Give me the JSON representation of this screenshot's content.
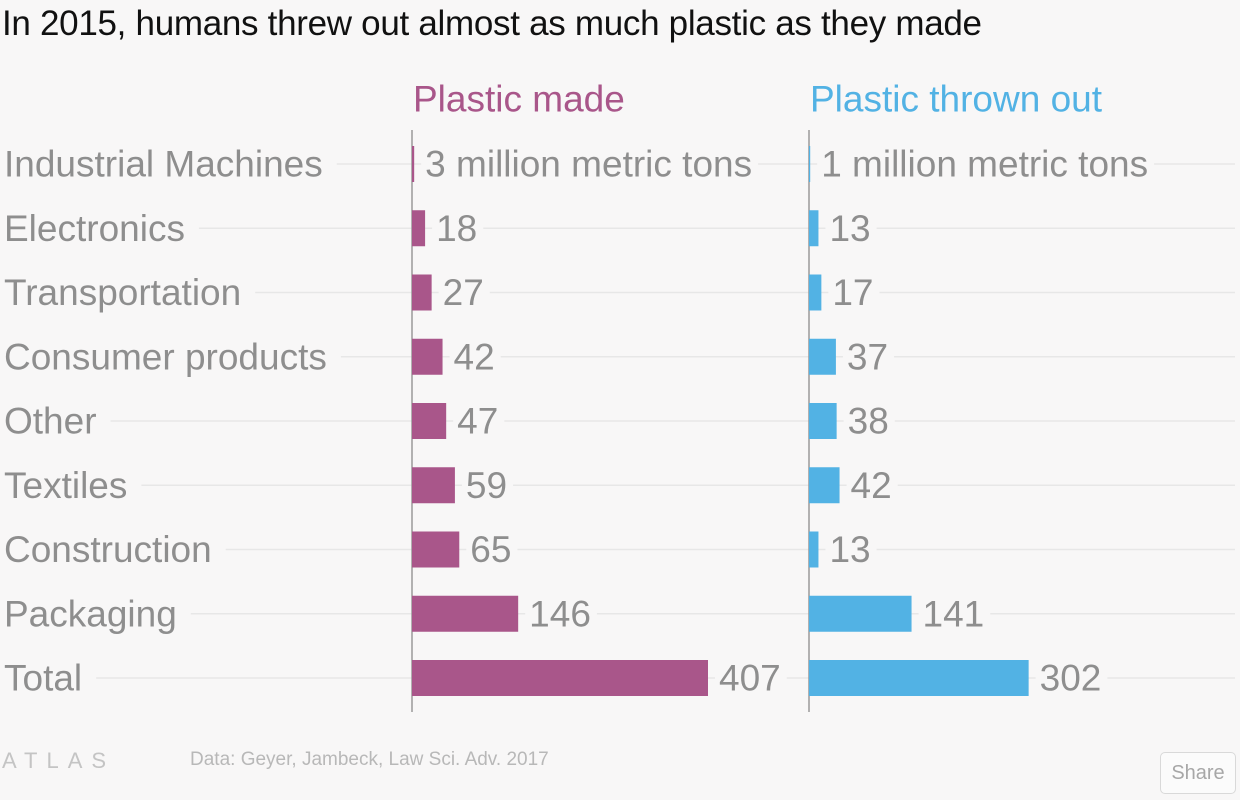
{
  "title": "In 2015, humans threw out almost as much plastic as they made",
  "footer": {
    "logo": "ATLAS",
    "source": "Data:  Geyer, Jambeck, Law Sci. Adv. 2017",
    "share_label": "Share"
  },
  "chart_data": {
    "type": "bar",
    "orientation": "horizontal",
    "categories": [
      "Industrial Machines",
      "Electronics",
      "Transportation",
      "Consumer products",
      "Other",
      "Textiles",
      "Construction",
      "Packaging",
      "Total"
    ],
    "series": [
      {
        "name": "Plastic made",
        "color": "#a9568a",
        "values": [
          3,
          18,
          27,
          42,
          47,
          59,
          65,
          146,
          407
        ],
        "value_labels": [
          "3 million metric tons",
          "18",
          "27",
          "42",
          "47",
          "59",
          "65",
          "146",
          "407"
        ]
      },
      {
        "name": "Plastic thrown out",
        "color": "#52b2e4",
        "values": [
          1,
          13,
          17,
          37,
          38,
          42,
          13,
          141,
          302
        ],
        "value_labels": [
          "1 million metric tons",
          "13",
          "17",
          "37",
          "38",
          "42",
          "13",
          "141",
          "302"
        ]
      }
    ],
    "grid": true
  }
}
